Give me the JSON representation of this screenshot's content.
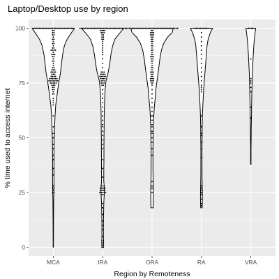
{
  "chart_data": {
    "type": "violin",
    "title": "Laptop/Desktop use by region",
    "xlabel": "Region by Remoteness",
    "ylabel": "% time used to access internet",
    "categories": [
      "MCA",
      "IRA",
      "ORA",
      "RA",
      "VRA"
    ],
    "yticks": [
      0,
      25,
      50,
      75,
      100
    ],
    "ylim": [
      -4,
      104
    ],
    "grid": true,
    "panel_background": "#ebebeb",
    "grid_color": "#ffffff",
    "series": [
      {
        "category": "MCA",
        "min": 0,
        "max": 100,
        "density_profile": [
          [
            100,
            0.95
          ],
          [
            98,
            0.82
          ],
          [
            95,
            0.62
          ],
          [
            92,
            0.5
          ],
          [
            88,
            0.42
          ],
          [
            84,
            0.37
          ],
          [
            80,
            0.33
          ],
          [
            76,
            0.26
          ],
          [
            72,
            0.2
          ],
          [
            68,
            0.15
          ],
          [
            65,
            0.11
          ],
          [
            60,
            0.08
          ],
          [
            55,
            0.06
          ],
          [
            50,
            0.045
          ],
          [
            45,
            0.035
          ],
          [
            40,
            0.03
          ],
          [
            35,
            0.03
          ],
          [
            30,
            0.03
          ],
          [
            26,
            0.025
          ],
          [
            20,
            0.015
          ],
          [
            10,
            0.01
          ],
          [
            0,
            0.005
          ]
        ],
        "points": [
          [
            100,
            28
          ],
          [
            99,
            2
          ],
          [
            98,
            2
          ],
          [
            97,
            2
          ],
          [
            96,
            1
          ],
          [
            95,
            2
          ],
          [
            94,
            1
          ],
          [
            93,
            2
          ],
          [
            92,
            1
          ],
          [
            91,
            2
          ],
          [
            90,
            4
          ],
          [
            89,
            1
          ],
          [
            88,
            3
          ],
          [
            87,
            2
          ],
          [
            86,
            1
          ],
          [
            85,
            2
          ],
          [
            84,
            1
          ],
          [
            83,
            1
          ],
          [
            82,
            2
          ],
          [
            81,
            3
          ],
          [
            80,
            4
          ],
          [
            79,
            3
          ],
          [
            78,
            4
          ],
          [
            77,
            6
          ],
          [
            76,
            7
          ],
          [
            75,
            5
          ],
          [
            74,
            3
          ],
          [
            73,
            2
          ],
          [
            72,
            2
          ],
          [
            71,
            1
          ],
          [
            70,
            2
          ],
          [
            68,
            1
          ],
          [
            67,
            1
          ],
          [
            66,
            1
          ],
          [
            65,
            1
          ],
          [
            60,
            1
          ],
          [
            55,
            1
          ],
          [
            52,
            2
          ],
          [
            50,
            1
          ],
          [
            47,
            1
          ],
          [
            45,
            1
          ],
          [
            42,
            1
          ],
          [
            40,
            1
          ],
          [
            36,
            1
          ],
          [
            33,
            1
          ],
          [
            28,
            1
          ],
          [
            27,
            2
          ],
          [
            26,
            1
          ],
          [
            25,
            2
          ]
        ]
      },
      {
        "category": "IRA",
        "min": 0,
        "max": 100,
        "density_profile": [
          [
            100,
            0.95
          ],
          [
            98,
            0.78
          ],
          [
            95,
            0.55
          ],
          [
            92,
            0.45
          ],
          [
            88,
            0.37
          ],
          [
            84,
            0.32
          ],
          [
            80,
            0.25
          ],
          [
            78,
            0.2
          ],
          [
            76,
            0.15
          ],
          [
            72,
            0.11
          ],
          [
            68,
            0.09
          ],
          [
            64,
            0.08
          ],
          [
            60,
            0.07
          ],
          [
            55,
            0.065
          ],
          [
            50,
            0.06
          ],
          [
            45,
            0.055
          ],
          [
            40,
            0.055
          ],
          [
            35,
            0.05
          ],
          [
            30,
            0.05
          ],
          [
            28,
            0.07
          ],
          [
            26,
            0.08
          ],
          [
            24,
            0.07
          ],
          [
            20,
            0.05
          ],
          [
            15,
            0.04
          ],
          [
            10,
            0.035
          ],
          [
            5,
            0.035
          ],
          [
            2,
            0.04
          ],
          [
            0,
            0.03
          ]
        ],
        "points": [
          [
            100,
            32
          ],
          [
            99,
            4
          ],
          [
            98,
            3
          ],
          [
            97,
            2
          ],
          [
            96,
            2
          ],
          [
            95,
            2
          ],
          [
            94,
            1
          ],
          [
            93,
            1
          ],
          [
            92,
            1
          ],
          [
            91,
            1
          ],
          [
            90,
            1
          ],
          [
            89,
            1
          ],
          [
            88,
            1
          ],
          [
            86,
            1
          ],
          [
            84,
            1
          ],
          [
            82,
            1
          ],
          [
            80,
            3
          ],
          [
            79,
            4
          ],
          [
            78,
            5
          ],
          [
            77,
            4
          ],
          [
            76,
            3
          ],
          [
            75,
            3
          ],
          [
            74,
            2
          ],
          [
            72,
            1
          ],
          [
            70,
            1
          ],
          [
            68,
            1
          ],
          [
            66,
            1
          ],
          [
            64,
            1
          ],
          [
            62,
            1
          ],
          [
            60,
            1
          ],
          [
            58,
            1
          ],
          [
            56,
            1
          ],
          [
            55,
            1
          ],
          [
            53,
            1
          ],
          [
            51,
            1
          ],
          [
            49,
            1
          ],
          [
            47,
            1
          ],
          [
            45,
            1
          ],
          [
            40,
            1
          ],
          [
            36,
            1
          ],
          [
            32,
            1
          ],
          [
            28,
            3
          ],
          [
            27,
            4
          ],
          [
            26,
            4
          ],
          [
            25,
            5
          ],
          [
            24,
            3
          ],
          [
            20,
            1
          ],
          [
            18,
            1
          ],
          [
            15,
            1
          ],
          [
            12,
            1
          ],
          [
            10,
            1
          ],
          [
            8,
            1
          ],
          [
            5,
            1
          ],
          [
            3,
            2
          ],
          [
            2,
            2
          ],
          [
            1,
            2
          ],
          [
            0,
            2
          ]
        ]
      },
      {
        "category": "ORA",
        "min": 18,
        "max": 100,
        "density_profile": [
          [
            100,
            0.95
          ],
          [
            98,
            0.9
          ],
          [
            96,
            0.7
          ],
          [
            93,
            0.52
          ],
          [
            90,
            0.42
          ],
          [
            86,
            0.35
          ],
          [
            82,
            0.3
          ],
          [
            78,
            0.25
          ],
          [
            75,
            0.21
          ],
          [
            72,
            0.17
          ],
          [
            68,
            0.14
          ],
          [
            64,
            0.1
          ],
          [
            60,
            0.08
          ],
          [
            55,
            0.06
          ],
          [
            50,
            0.05
          ],
          [
            45,
            0.04
          ],
          [
            40,
            0.04
          ],
          [
            35,
            0.04
          ],
          [
            30,
            0.05
          ],
          [
            26,
            0.06
          ],
          [
            22,
            0.06
          ],
          [
            18,
            0.05
          ]
        ],
        "points": [
          [
            100,
            36
          ],
          [
            99,
            2
          ],
          [
            98,
            3
          ],
          [
            97,
            3
          ],
          [
            96,
            2
          ],
          [
            95,
            2
          ],
          [
            94,
            2
          ],
          [
            93,
            1
          ],
          [
            92,
            2
          ],
          [
            91,
            1
          ],
          [
            90,
            2
          ],
          [
            89,
            1
          ],
          [
            88,
            2
          ],
          [
            87,
            3
          ],
          [
            86,
            2
          ],
          [
            85,
            2
          ],
          [
            84,
            1
          ],
          [
            83,
            1
          ],
          [
            82,
            2
          ],
          [
            81,
            1
          ],
          [
            80,
            3
          ],
          [
            79,
            2
          ],
          [
            78,
            2
          ],
          [
            77,
            3
          ],
          [
            76,
            3
          ],
          [
            75,
            2
          ],
          [
            74,
            1
          ],
          [
            72,
            1
          ],
          [
            70,
            1
          ],
          [
            68,
            1
          ],
          [
            66,
            1
          ],
          [
            64,
            1
          ],
          [
            62,
            1
          ],
          [
            60,
            2
          ],
          [
            58,
            1
          ],
          [
            56,
            1
          ],
          [
            55,
            1
          ],
          [
            53,
            1
          ],
          [
            52,
            1
          ],
          [
            50,
            1
          ],
          [
            48,
            1
          ],
          [
            45,
            1
          ],
          [
            42,
            1
          ],
          [
            30,
            2
          ],
          [
            28,
            2
          ],
          [
            27,
            2
          ],
          [
            25,
            1
          ]
        ]
      },
      {
        "category": "RA",
        "min": 18,
        "max": 100,
        "density_profile": [
          [
            100,
            0.5
          ],
          [
            98,
            0.4
          ],
          [
            95,
            0.3
          ],
          [
            92,
            0.25
          ],
          [
            88,
            0.22
          ],
          [
            84,
            0.19
          ],
          [
            80,
            0.16
          ],
          [
            76,
            0.13
          ],
          [
            72,
            0.1
          ],
          [
            68,
            0.08
          ],
          [
            64,
            0.06
          ],
          [
            60,
            0.045
          ],
          [
            55,
            0.035
          ],
          [
            50,
            0.03
          ],
          [
            45,
            0.025
          ],
          [
            40,
            0.025
          ],
          [
            35,
            0.025
          ],
          [
            30,
            0.03
          ],
          [
            26,
            0.04
          ],
          [
            22,
            0.045
          ],
          [
            18,
            0.035
          ]
        ],
        "points": [
          [
            100,
            10
          ],
          [
            98,
            1
          ],
          [
            96,
            1
          ],
          [
            94,
            1
          ],
          [
            92,
            1
          ],
          [
            90,
            1
          ],
          [
            88,
            1
          ],
          [
            86,
            1
          ],
          [
            84,
            1
          ],
          [
            82,
            1
          ],
          [
            80,
            1
          ],
          [
            78,
            1
          ],
          [
            76,
            1
          ],
          [
            74,
            1
          ],
          [
            73,
            1
          ],
          [
            72,
            1
          ],
          [
            71,
            1
          ],
          [
            60,
            1
          ],
          [
            55,
            1
          ],
          [
            52,
            1
          ],
          [
            51,
            1
          ],
          [
            48,
            1
          ],
          [
            45,
            1
          ],
          [
            41,
            1
          ],
          [
            28,
            1
          ],
          [
            27,
            1
          ],
          [
            26,
            1
          ],
          [
            25,
            1
          ],
          [
            24,
            1
          ],
          [
            22,
            1
          ],
          [
            20,
            1
          ],
          [
            19,
            1
          ]
        ]
      },
      {
        "category": "VRA",
        "min": 38,
        "max": 100,
        "density_profile": [
          [
            100,
            0.22
          ],
          [
            97,
            0.18
          ],
          [
            93,
            0.14
          ],
          [
            88,
            0.11
          ],
          [
            84,
            0.09
          ],
          [
            80,
            0.07
          ],
          [
            76,
            0.06
          ],
          [
            72,
            0.05
          ],
          [
            68,
            0.04
          ],
          [
            64,
            0.035
          ],
          [
            60,
            0.03
          ],
          [
            55,
            0.02
          ],
          [
            50,
            0.015
          ],
          [
            45,
            0.01
          ],
          [
            40,
            0.008
          ],
          [
            38,
            0.005
          ]
        ],
        "points": [
          [
            100,
            4
          ],
          [
            86,
            1
          ],
          [
            77,
            1
          ],
          [
            76,
            1
          ],
          [
            75,
            1
          ],
          [
            73,
            1
          ],
          [
            71,
            1
          ],
          [
            64,
            1
          ],
          [
            59,
            1
          ],
          [
            38,
            1
          ]
        ]
      }
    ]
  }
}
